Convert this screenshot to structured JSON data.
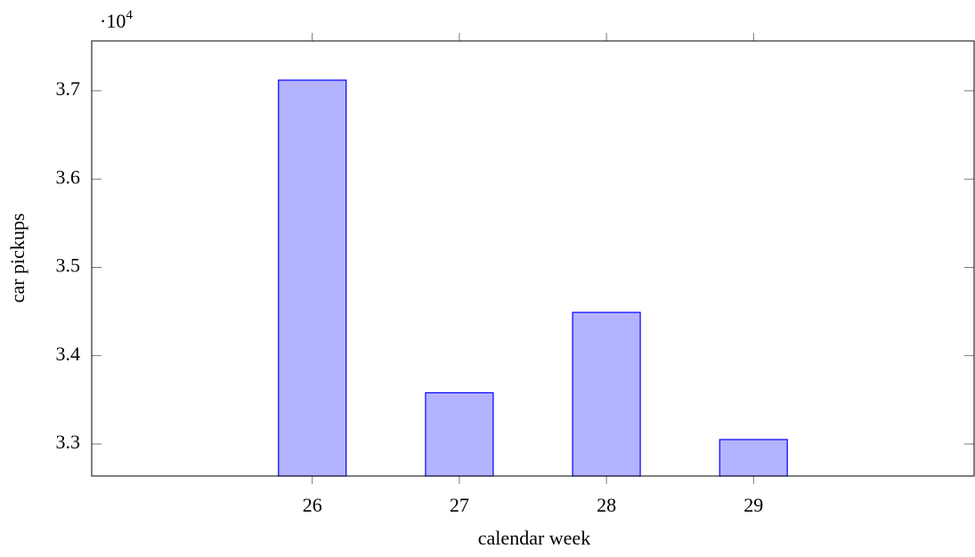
{
  "chart_data": {
    "type": "bar",
    "x_label": "calendar week",
    "y_label": "car pickups",
    "y_multiplier": {
      "base": "·10",
      "exponent": "4"
    },
    "x": [
      26,
      27,
      28,
      29
    ],
    "values": [
      3.712,
      3.358,
      3.449,
      3.305
    ],
    "color": "#b3b3ff",
    "edge_color": "#0000ff",
    "xlim": [
      24.5,
      30.5
    ],
    "xticks": [
      26,
      27,
      28,
      29
    ],
    "ylim": [
      3.2637,
      3.7564
    ],
    "yticks": [
      3.3,
      3.4,
      3.5,
      3.6,
      3.7
    ],
    "grid": false
  }
}
